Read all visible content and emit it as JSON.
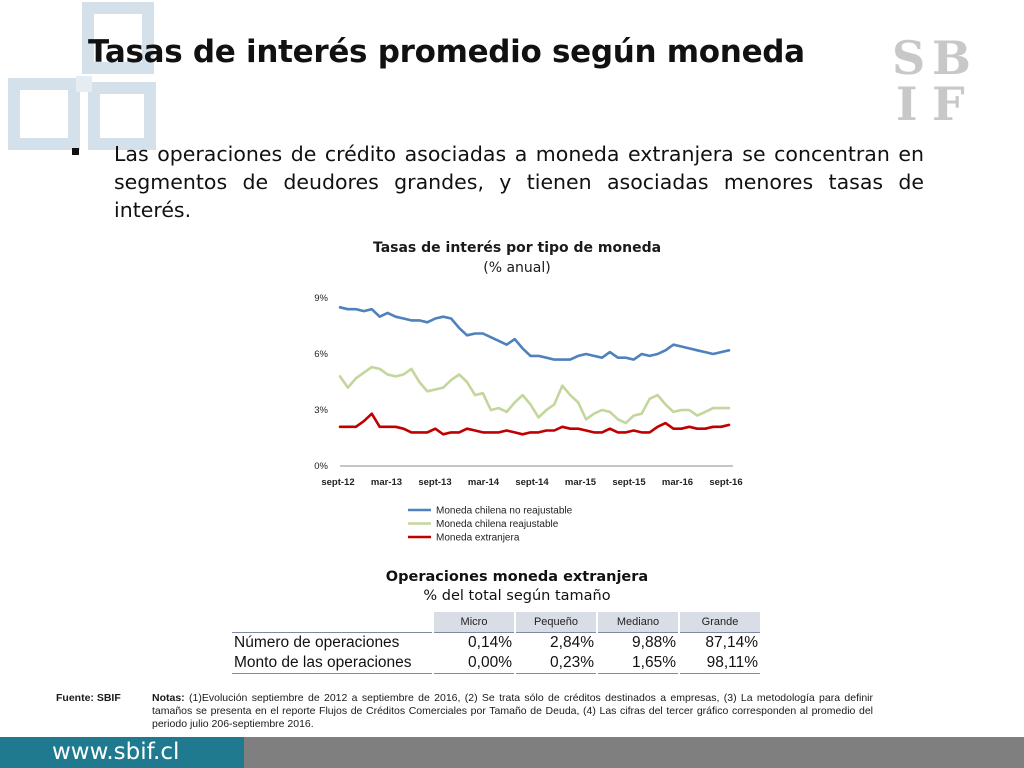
{
  "header": {
    "title": "Tasas de interés promedio según moneda",
    "logo_text": "SBIF"
  },
  "bullet": {
    "text": "Las operaciones de crédito asociadas a moneda extranjera se concentran en segmentos de deudores grandes, y tienen asociadas menores tasas de interés."
  },
  "colors": {
    "series_blue": "#4f81bd",
    "series_green": "#c3d69b",
    "series_red": "#c00000",
    "footer_teal": "#1f7a8f",
    "footer_gray": "#7f7f7f",
    "table_header": "#d9dde6",
    "deco": "#d5e1ea"
  },
  "chart_data": {
    "type": "line",
    "title": "Tasas de interés por tipo de moneda",
    "subtitle": "(% anual)",
    "xlabel": "",
    "ylabel": "",
    "y_ticks": [
      "0%",
      "3%",
      "6%",
      "9%"
    ],
    "ylim": [
      0,
      9
    ],
    "x_tick_labels": [
      "sept-12",
      "mar-13",
      "sept-13",
      "mar-14",
      "sept-14",
      "mar-15",
      "sept-15",
      "mar-16",
      "sept-16"
    ],
    "grid": false,
    "legend_position": "bottom",
    "series": [
      {
        "name": "Moneda chilena no reajustable",
        "color": "#4f81bd",
        "values": [
          8.5,
          8.4,
          8.4,
          8.3,
          8.4,
          8.0,
          8.2,
          8.0,
          7.9,
          7.8,
          7.8,
          7.7,
          7.9,
          8.0,
          7.9,
          7.4,
          7.0,
          7.1,
          7.1,
          6.9,
          6.7,
          6.5,
          6.8,
          6.3,
          5.9,
          5.9,
          5.8,
          5.7,
          5.7,
          5.7,
          5.9,
          6.0,
          5.9,
          5.8,
          6.1,
          5.8,
          5.8,
          5.7,
          6.0,
          5.9,
          6.0,
          6.2,
          6.5,
          6.4,
          6.3,
          6.2,
          6.1,
          6.0,
          6.1,
          6.2
        ]
      },
      {
        "name": "Moneda chilena reajustable",
        "color": "#c3d69b",
        "values": [
          4.8,
          4.2,
          4.7,
          5.0,
          5.3,
          5.2,
          4.9,
          4.8,
          4.9,
          5.2,
          4.5,
          4.0,
          4.1,
          4.2,
          4.6,
          4.9,
          4.5,
          3.8,
          3.9,
          3.0,
          3.1,
          2.9,
          3.4,
          3.8,
          3.3,
          2.6,
          3.0,
          3.3,
          4.3,
          3.8,
          3.4,
          2.5,
          2.8,
          3.0,
          2.9,
          2.5,
          2.3,
          2.7,
          2.8,
          3.6,
          3.8,
          3.3,
          2.9,
          3.0,
          3.0,
          2.7,
          2.9,
          3.1,
          3.1,
          3.1
        ]
      },
      {
        "name": "Moneda extranjera",
        "color": "#c00000",
        "values": [
          2.1,
          2.1,
          2.1,
          2.4,
          2.8,
          2.1,
          2.1,
          2.1,
          2.0,
          1.8,
          1.8,
          1.8,
          2.0,
          1.7,
          1.8,
          1.8,
          2.0,
          1.9,
          1.8,
          1.8,
          1.8,
          1.9,
          1.8,
          1.7,
          1.8,
          1.8,
          1.9,
          1.9,
          2.1,
          2.0,
          2.0,
          1.9,
          1.8,
          1.8,
          2.0,
          1.8,
          1.8,
          1.9,
          1.8,
          1.8,
          2.1,
          2.3,
          2.0,
          2.0,
          2.1,
          2.0,
          2.0,
          2.1,
          2.1,
          2.2
        ]
      }
    ]
  },
  "table": {
    "title": "Operaciones moneda extranjera",
    "subtitle": "% del total según tamaño",
    "headers": [
      "Micro",
      "Pequeño",
      "Mediano",
      "Grande"
    ],
    "rows": [
      {
        "label": "Número de operaciones",
        "values": [
          "0,14%",
          "2,84%",
          "9,88%",
          "87,14%"
        ]
      },
      {
        "label": "Monto de las operaciones",
        "values": [
          "0,00%",
          "0,23%",
          "1,65%",
          "98,11%"
        ]
      }
    ]
  },
  "footnote": {
    "source": "Fuente: SBIF",
    "notes_label": "Notas:",
    "notes_text": "(1)Evolución septiembre de 2012 a septiembre de 2016, (2) Se trata sólo de créditos destinados a empresas, (3) La metodología para definir tamaños se presenta en el reporte Flujos de Créditos Comerciales por Tamaño de Deuda, (4) Las cifras del tercer gráfico corresponden al promedio del periodo julio 206-septiembre 2016."
  },
  "footer": {
    "url": "www.sbif.cl"
  }
}
